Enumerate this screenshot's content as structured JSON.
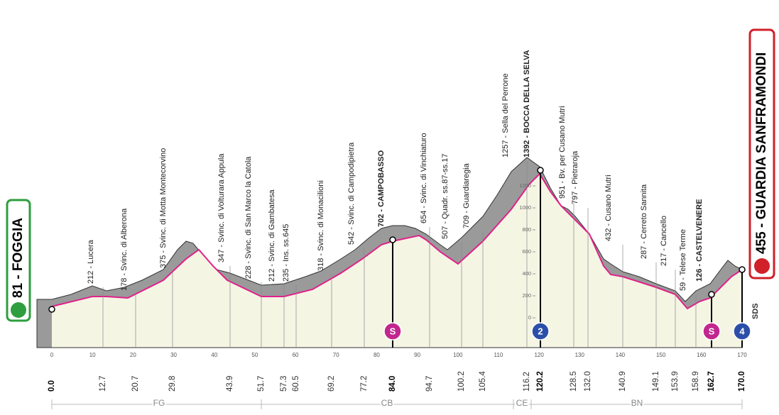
{
  "start": {
    "label": "81 - FOGGIA",
    "km": "0.0"
  },
  "finish": {
    "label": "455 - GUARDIA SANFRAMONDI",
    "km": "170.0"
  },
  "waypoints": [
    {
      "label": "212 - Lucera",
      "km": "12.7"
    },
    {
      "label": "178 - Svinc. di Alberona",
      "km": "20.7"
    },
    {
      "label": "375 - Svinc. di Motta Montecorvino",
      "km": "29.8"
    },
    {
      "label": "347 - Svinc. di Volturara Appula",
      "km": "43.9"
    },
    {
      "label": "228 - Svinc. di San Marco la Catola",
      "km": "51.7"
    },
    {
      "label": "212 - Svinc. di Gambatesa",
      "km": "57.3"
    },
    {
      "label": "235 - Ins. ss.645",
      "km": "60.5"
    },
    {
      "label": "318 - Svinc. di Monacilioni",
      "km": "69.2"
    },
    {
      "label": "542 - Svinc. di Campodipietra",
      "km": "77.2"
    },
    {
      "label": "702 - CAMPOBASSO",
      "km": "84.0",
      "bold": true
    },
    {
      "label": "654 - Svinc. di Vinchiaturo",
      "km": "94.7"
    },
    {
      "label": "507 - Quadr. ss.87-ss.17",
      "km": "100.2"
    },
    {
      "label": "709 - Guardiaregia",
      "km": "105.4"
    },
    {
      "label": "1257 - Sella del Perrone",
      "km": "116.2"
    },
    {
      "label": "1392 - BOCCA DELLA SELVA",
      "km": "120.2",
      "bold": true
    },
    {
      "label": "951 - Bv. per Cusano Mutri",
      "km": "128.5"
    },
    {
      "label": "797 - Pietraroja",
      "km": "132.0"
    },
    {
      "label": "432 - Cusano Mutri",
      "km": "140.9"
    },
    {
      "label": "287 - Cerreto Sannita",
      "km": "149.1"
    },
    {
      "label": "217 - Cancello",
      "km": "153.9"
    },
    {
      "label": "59 - Telese Terme",
      "km": "158.9"
    },
    {
      "label": "126 - CASTELVENERE",
      "km": "162.7",
      "bold": true
    }
  ],
  "km_ticks": [
    0,
    10,
    20,
    30,
    40,
    50,
    60,
    70,
    80,
    90,
    100,
    110,
    120,
    130,
    140,
    150,
    160,
    170
  ],
  "elevation_ticks": [
    0,
    200,
    400,
    600,
    800,
    1000,
    1200
  ],
  "icons": [
    "S",
    "2",
    "S",
    "4"
  ],
  "sds": "SDS",
  "provinces": [
    "FG",
    "CB",
    "CE",
    "BN"
  ]
}
